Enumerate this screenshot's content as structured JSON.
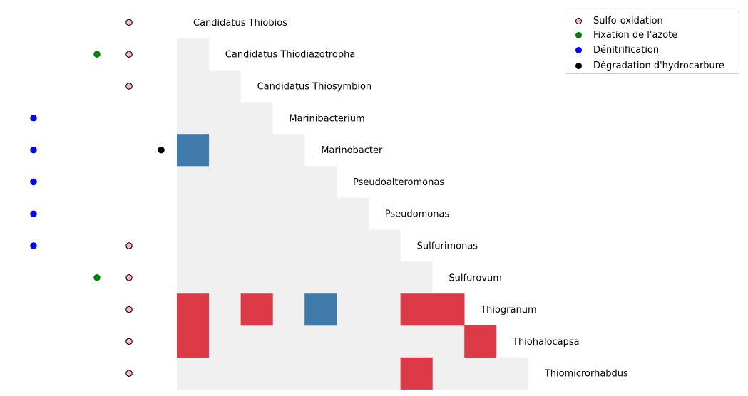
{
  "chart_data": {
    "type": "heatmap",
    "taxa": [
      "Candidatus Thiobios",
      "Candidatus Thiodiazotropha",
      "Candidatus Thiosymbion",
      "Marinibacterium",
      "Marinobacter",
      "Pseudoalteromonas",
      "Pseudomonas",
      "Sulfurimonas",
      "Sulfurovum",
      "Thiogranum",
      "Thiohalocapsa",
      "Thiomicrorhabdus"
    ],
    "cells": [
      {
        "row": 4,
        "col": 0,
        "sign": "negative"
      },
      {
        "row": 9,
        "col": 0,
        "sign": "positive"
      },
      {
        "row": 9,
        "col": 2,
        "sign": "positive"
      },
      {
        "row": 9,
        "col": 4,
        "sign": "negative"
      },
      {
        "row": 9,
        "col": 7,
        "sign": "positive"
      },
      {
        "row": 9,
        "col": 8,
        "sign": "positive"
      },
      {
        "row": 10,
        "col": 0,
        "sign": "positive"
      },
      {
        "row": 10,
        "col": 9,
        "sign": "positive"
      },
      {
        "row": 11,
        "col": 7,
        "sign": "positive"
      }
    ],
    "traits": {
      "denitrification": [
        3,
        4,
        5,
        6,
        7
      ],
      "nitrogen_fixation": [
        1,
        8
      ],
      "sulfur_oxidation": [
        0,
        1,
        2,
        7,
        8,
        9,
        10,
        11
      ],
      "hydrocarbon_degradation": [
        4
      ]
    },
    "legend": [
      {
        "key": "sulfur_oxidation",
        "label": "Sulfo-oxidation",
        "color": "#ffb6c1",
        "edge": "#000000"
      },
      {
        "key": "nitrogen_fixation",
        "label": "Fixation de l'azote",
        "color": "#008000",
        "edge": "#008000"
      },
      {
        "key": "denitrification",
        "label": "Dénitrification",
        "color": "#0000ff",
        "edge": "#0000ff"
      },
      {
        "key": "hydrocarbon_degradation",
        "label": "Dégradation d'hydrocarbure",
        "color": "#000000",
        "edge": "#000000"
      }
    ],
    "legend_position": "top-right",
    "colors": {
      "positive": "#dc3a47",
      "negative": "#3f7aaa",
      "empty": "#f0f0f0"
    }
  }
}
